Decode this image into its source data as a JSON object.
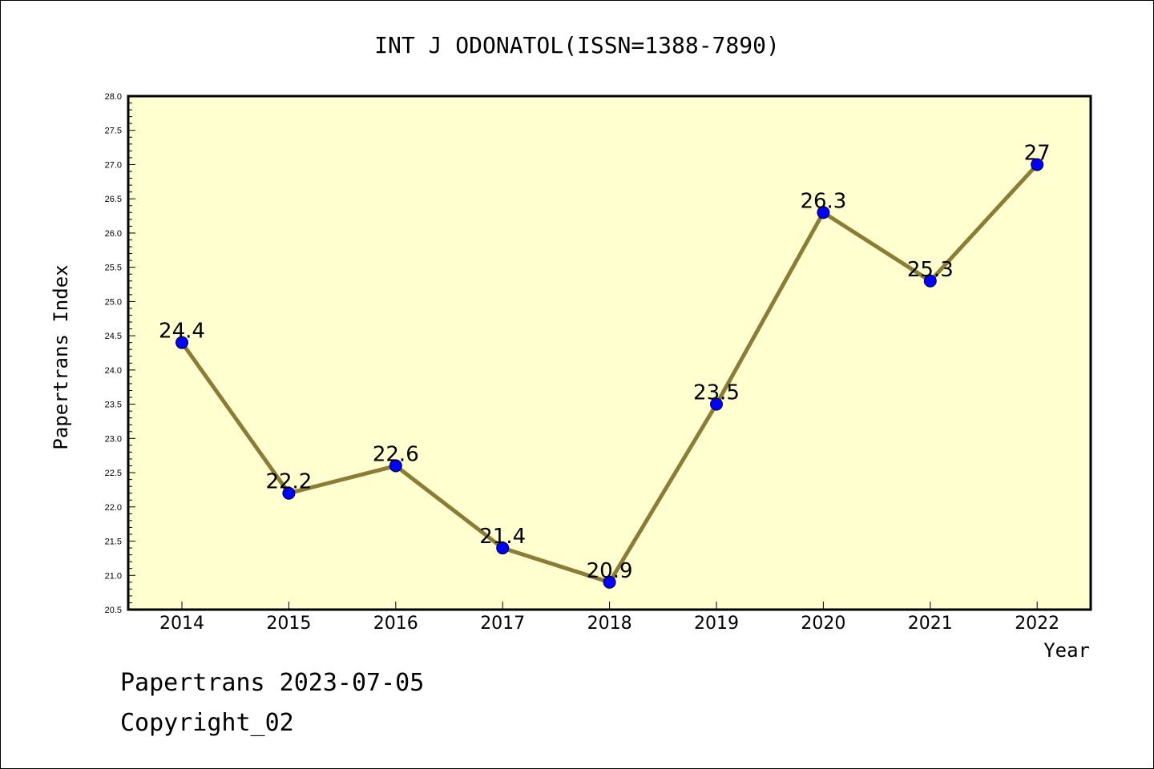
{
  "chart_data": {
    "type": "line",
    "title": "INT J ODONATOL(ISSN=1388-7890)",
    "xlabel": "Year",
    "ylabel": "Papertrans Index",
    "categories": [
      "2014",
      "2015",
      "2016",
      "2017",
      "2018",
      "2019",
      "2020",
      "2021",
      "2022"
    ],
    "series": [
      {
        "values": [
          24.4,
          22.2,
          22.6,
          21.4,
          20.9,
          23.5,
          26.3,
          25.3,
          27.0
        ]
      }
    ],
    "point_labels": [
      "24.4",
      "22.2",
      "22.6",
      "21.4",
      "20.9",
      "23.5",
      "26.3",
      "25.3",
      "27"
    ],
    "ylim": [
      20.5,
      28.0
    ],
    "yticks": [
      "20.5",
      "21.0",
      "21.5",
      "22.0",
      "22.5",
      "23.0",
      "23.5",
      "24.0",
      "24.5",
      "25.0",
      "25.5",
      "26.0",
      "26.5",
      "27.0",
      "27.5",
      "28.0"
    ],
    "grid": false,
    "colors": {
      "plot_background": "#ffffd0",
      "line": "#8b7d35",
      "marker": "#0000ff"
    }
  },
  "footer": {
    "line1": "Papertrans 2023-07-05",
    "line2": "Copyright_02"
  }
}
